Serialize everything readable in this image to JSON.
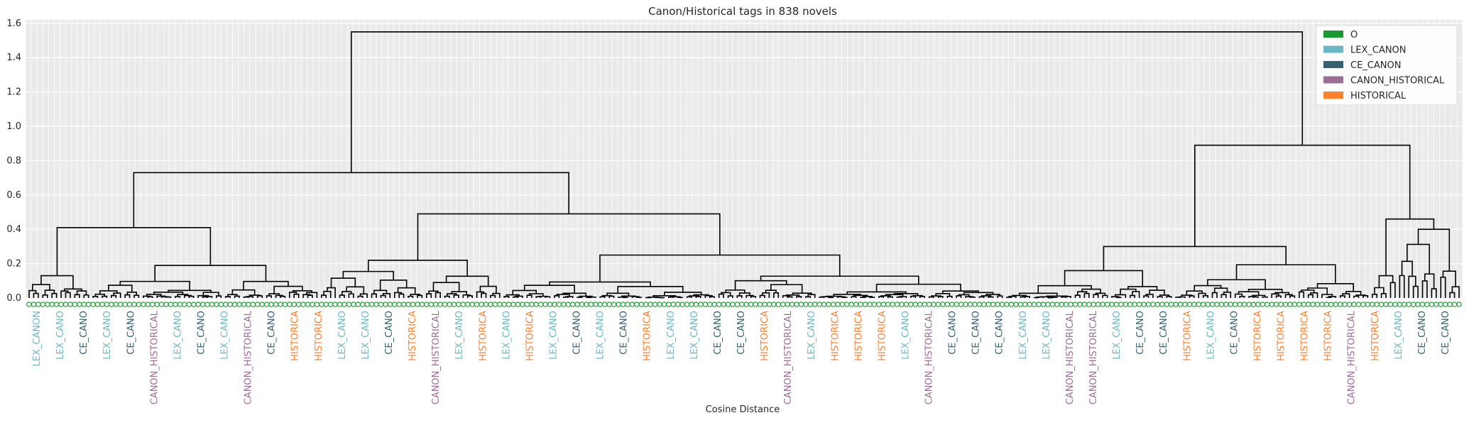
{
  "chart_data": {
    "type": "dendrogram",
    "title": "Canon/Historical tags in 838 novels",
    "xlabel": "Cosine Distance",
    "ylabel": "",
    "ylim": [
      0,
      1.62
    ],
    "yticks": [
      "0.0",
      "0.2",
      "0.4",
      "0.6",
      "0.8",
      "1.0",
      "1.2",
      "1.4",
      "1.6"
    ],
    "grid": true,
    "legend_position": "top-right",
    "leaf_count": 838,
    "legend": [
      {
        "label": "O",
        "color": "#1a9a2e"
      },
      {
        "label": "LEX_CANON",
        "color": "#6bb7c4"
      },
      {
        "label": "CE_CANON",
        "color": "#34606f"
      },
      {
        "label": "CANON_HISTORICAL",
        "color": "#9b6e93"
      },
      {
        "label": "HISTORICAL",
        "color": "#ff7f2a"
      }
    ],
    "top_merges": [
      {
        "id": "root",
        "height": 1.55,
        "children": [
          "A",
          "B"
        ]
      },
      {
        "id": "A",
        "height": 0.73,
        "children": [
          "A1",
          "A2"
        ]
      },
      {
        "id": "A1",
        "height": 0.41,
        "children": [
          "A1a",
          "A1b"
        ]
      },
      {
        "id": "A1b",
        "height": 0.19
      },
      {
        "id": "A2",
        "height": 0.49,
        "children": [
          "A2a",
          "A2b"
        ]
      },
      {
        "id": "A2a",
        "height": 0.22
      },
      {
        "id": "A2b",
        "height": 0.25
      },
      {
        "id": "B",
        "height": 0.89,
        "children": [
          "B1",
          "B2"
        ]
      },
      {
        "id": "B1",
        "height": 0.3
      },
      {
        "id": "B2",
        "height": 0.46,
        "children": [
          "B2a",
          "B2b"
        ]
      },
      {
        "id": "B2b",
        "height": 0.4
      }
    ],
    "leaf_labels": [
      {
        "label": "LEX_CANON",
        "tag": "LEX_CANON"
      },
      {
        "label": "LEX_CANO",
        "tag": "LEX_CANON"
      },
      {
        "label": "CE_CANO",
        "tag": "CE_CANON"
      },
      {
        "label": "LEX_CANO",
        "tag": "LEX_CANON"
      },
      {
        "label": "CE_CANO",
        "tag": "CE_CANON"
      },
      {
        "label": "CANON_HISTORICAL",
        "tag": "CANON_HISTORICAL"
      },
      {
        "label": "LEX_CANO",
        "tag": "LEX_CANON"
      },
      {
        "label": "CE_CANO",
        "tag": "CE_CANON"
      },
      {
        "label": "LEX_CANO",
        "tag": "LEX_CANON"
      },
      {
        "label": "CANON_HISTORICAL",
        "tag": "CANON_HISTORICAL"
      },
      {
        "label": "CE_CANO",
        "tag": "CE_CANON"
      },
      {
        "label": "HISTORICA",
        "tag": "HISTORICAL"
      },
      {
        "label": "HISTORICA",
        "tag": "HISTORICAL"
      },
      {
        "label": "LEX_CANO",
        "tag": "LEX_CANON"
      },
      {
        "label": "LEX_CANO",
        "tag": "LEX_CANON"
      },
      {
        "label": "CE_CANO",
        "tag": "CE_CANON"
      },
      {
        "label": "HISTORICA",
        "tag": "HISTORICAL"
      },
      {
        "label": "CANON_HISTORICAL",
        "tag": "CANON_HISTORICAL"
      },
      {
        "label": "LEX_CANO",
        "tag": "LEX_CANON"
      },
      {
        "label": "HISTORICA",
        "tag": "HISTORICAL"
      },
      {
        "label": "LEX_CANO",
        "tag": "LEX_CANON"
      },
      {
        "label": "HISTORICA",
        "tag": "HISTORICAL"
      },
      {
        "label": "LEX_CANO",
        "tag": "LEX_CANON"
      },
      {
        "label": "CE_CANO",
        "tag": "CE_CANON"
      },
      {
        "label": "LEX_CANO",
        "tag": "LEX_CANON"
      },
      {
        "label": "CE_CANO",
        "tag": "CE_CANON"
      },
      {
        "label": "HISTORICA",
        "tag": "HISTORICAL"
      },
      {
        "label": "LEX_CANO",
        "tag": "LEX_CANON"
      },
      {
        "label": "LEX_CANO",
        "tag": "LEX_CANON"
      },
      {
        "label": "CE_CANO",
        "tag": "CE_CANON"
      },
      {
        "label": "CE_CANO",
        "tag": "CE_CANON"
      },
      {
        "label": "HISTORICA",
        "tag": "HISTORICAL"
      },
      {
        "label": "CANON_HISTORICAL",
        "tag": "CANON_HISTORICAL"
      },
      {
        "label": "LEX_CANO",
        "tag": "LEX_CANON"
      },
      {
        "label": "HISTORICA",
        "tag": "HISTORICAL"
      },
      {
        "label": "HISTORICA",
        "tag": "HISTORICAL"
      },
      {
        "label": "HISTORICA",
        "tag": "HISTORICAL"
      },
      {
        "label": "LEX_CANO",
        "tag": "LEX_CANON"
      },
      {
        "label": "CANON_HISTORICAL",
        "tag": "CANON_HISTORICAL"
      },
      {
        "label": "CE_CANO",
        "tag": "CE_CANON"
      },
      {
        "label": "CE_CANO",
        "tag": "CE_CANON"
      },
      {
        "label": "CE_CANO",
        "tag": "CE_CANON"
      },
      {
        "label": "LEX_CANO",
        "tag": "LEX_CANON"
      },
      {
        "label": "LEX_CANO",
        "tag": "LEX_CANON"
      },
      {
        "label": "CANON_HISTORICAL",
        "tag": "CANON_HISTORICAL"
      },
      {
        "label": "CANON_HISTORICAL",
        "tag": "CANON_HISTORICAL"
      },
      {
        "label": "LEX_CANO",
        "tag": "LEX_CANON"
      },
      {
        "label": "CE_CANO",
        "tag": "CE_CANON"
      },
      {
        "label": "CE_CANO",
        "tag": "CE_CANON"
      },
      {
        "label": "HISTORICA",
        "tag": "HISTORICAL"
      },
      {
        "label": "LEX_CANO",
        "tag": "LEX_CANON"
      },
      {
        "label": "CE_CANO",
        "tag": "CE_CANON"
      },
      {
        "label": "HISTORICA",
        "tag": "HISTORICAL"
      },
      {
        "label": "HISTORICA",
        "tag": "HISTORICAL"
      },
      {
        "label": "HISTORICA",
        "tag": "HISTORICAL"
      },
      {
        "label": "HISTORICA",
        "tag": "HISTORICAL"
      },
      {
        "label": "CANON_HISTORICAL",
        "tag": "CANON_HISTORICAL"
      },
      {
        "label": "HISTORICA",
        "tag": "HISTORICAL"
      },
      {
        "label": "LEX_CANO",
        "tag": "LEX_CANON"
      },
      {
        "label": "CE_CANO",
        "tag": "CE_CANON"
      },
      {
        "label": "CE_CANO",
        "tag": "CE_CANON"
      }
    ]
  }
}
